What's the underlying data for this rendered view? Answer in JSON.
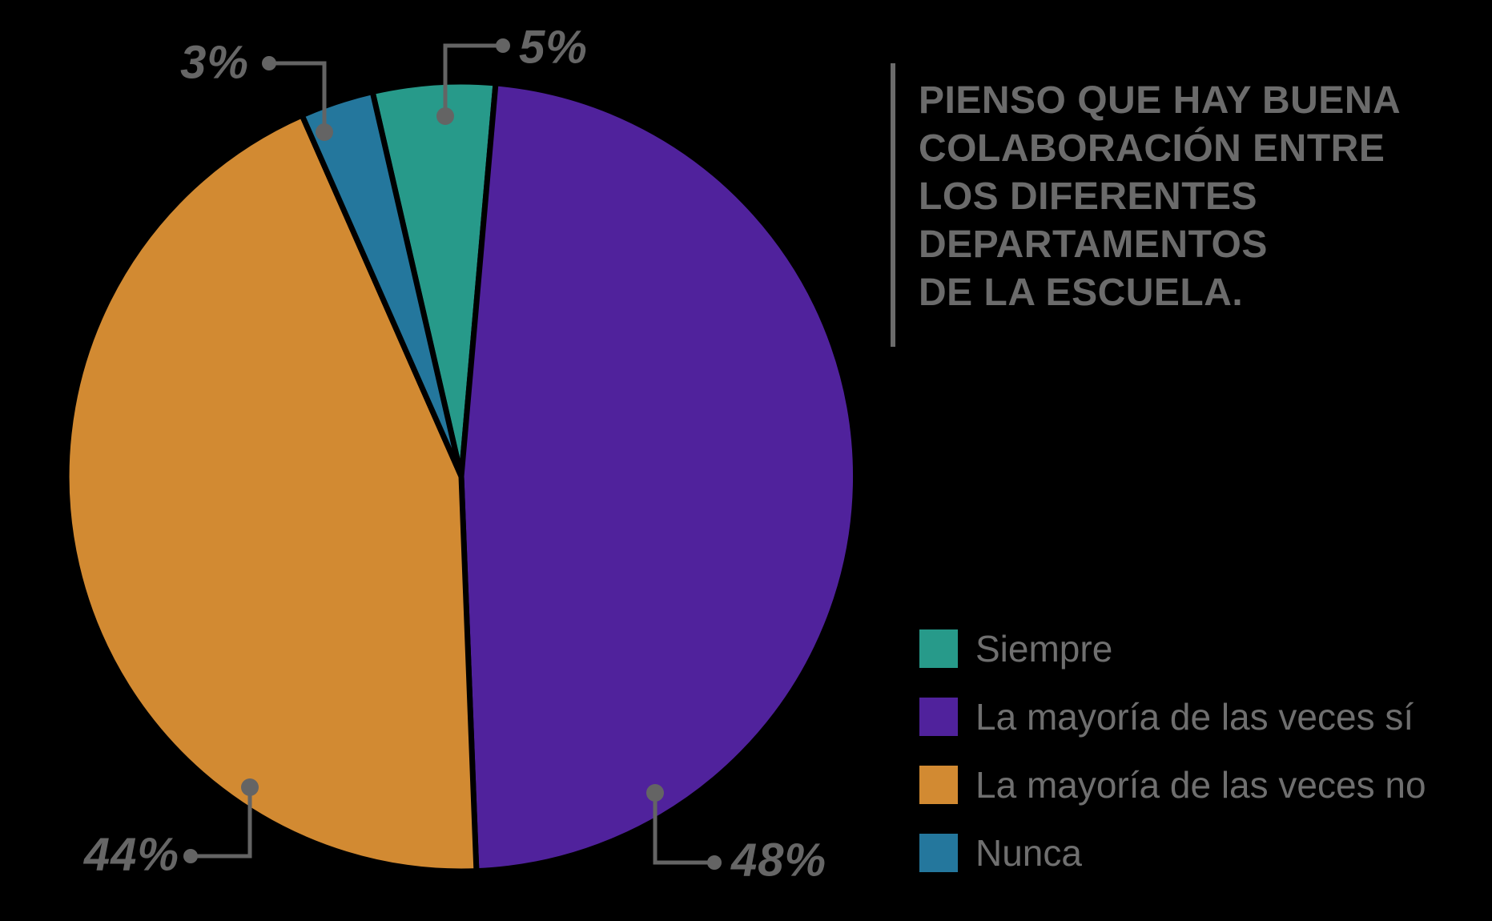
{
  "chart_data": {
    "type": "pie",
    "title": "PIENSO QUE HAY BUENA COLABORACIÓN ENTRE LOS DIFERENTES DEPARTAMENTOS DE LA ESCUELA.",
    "title_lines": [
      "PIENSO QUE HAY BUENA",
      "COLABORACIÓN ENTRE",
      "LOS DIFERENTES",
      "DEPARTAMENTOS",
      "DE LA ESCUELA."
    ],
    "total": 100,
    "start_angle_deg": -13,
    "clockwise": true,
    "legend_position": "right-bottom",
    "background_color": "#000000",
    "text_color": "#6b6b6b",
    "leader_line_color": "#646464",
    "slices": [
      {
        "label": "Siempre",
        "value": 5,
        "percent_label": "5%",
        "color": "#279a8a"
      },
      {
        "label": "La mayoría de las veces sí",
        "value": 48,
        "percent_label": "48%",
        "color": "#50229c"
      },
      {
        "label": "La mayoría de las veces no",
        "value": 44,
        "percent_label": "44%",
        "color": "#d28a32"
      },
      {
        "label": "Nunca",
        "value": 3,
        "percent_label": "3%",
        "color": "#24779d"
      }
    ]
  }
}
